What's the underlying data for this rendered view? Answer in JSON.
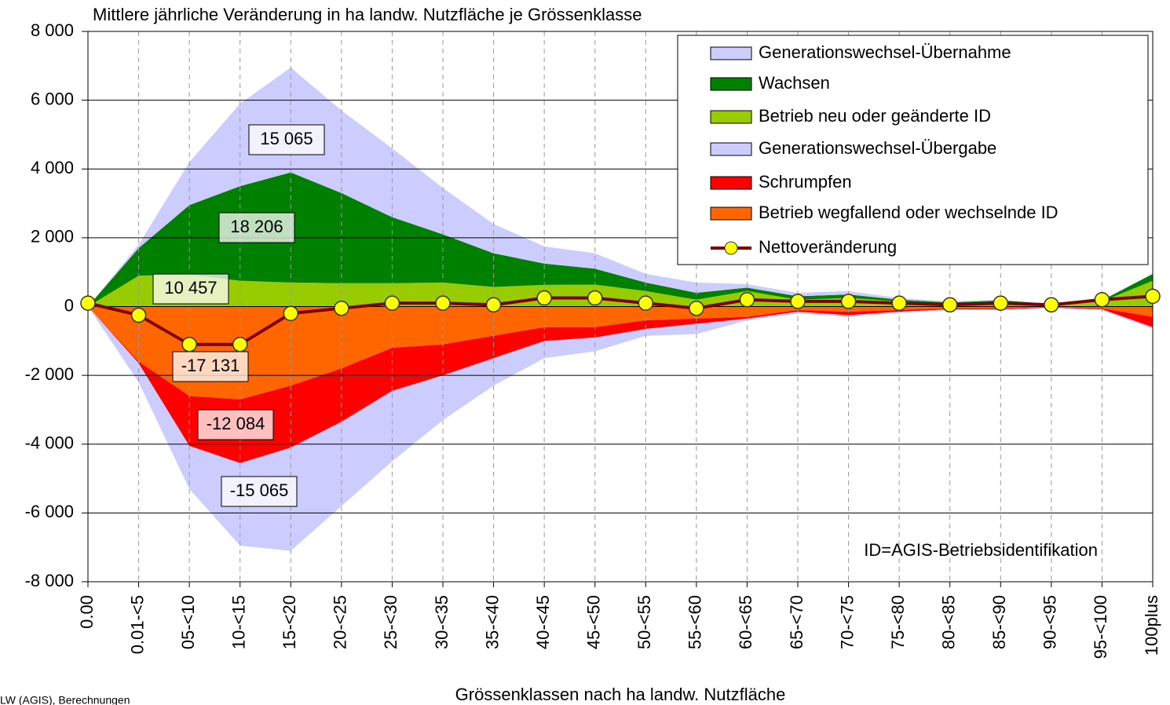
{
  "chart_data": {
    "type": "stacked-area",
    "title": "Mittlere jährliche Veränderung in ha landw. Nutzfläche je Grössenklasse",
    "x_label": "Grössenklassen nach ha landw. Nutzfläche",
    "annotation": "ID=AGIS-Betriebsidentifikation",
    "source": "LW (AGIS), Berechnungen",
    "categories": [
      "0.00",
      "0.01-<5",
      "05-<10",
      "10-<15",
      "15-<20",
      "20-<25",
      "25-<30",
      "30-<35",
      "35-<40",
      "40-<45",
      "45-<50",
      "50-<55",
      "55-<60",
      "60-<65",
      "65-<70",
      "70-<75",
      "75-<80",
      "80-<85",
      "85-<90",
      "90-<95",
      "95-<100",
      "100plus"
    ],
    "ylim": [
      -8000,
      8000
    ],
    "yticks": [
      {
        "value": -8000,
        "label": "-8 000"
      },
      {
        "value": -6000,
        "label": "-6 000"
      },
      {
        "value": -4000,
        "label": "-4 000"
      },
      {
        "value": -2000,
        "label": "-2 000"
      },
      0,
      {
        "value": 2000,
        "label": "2 000"
      },
      {
        "value": 4000,
        "label": "4 000"
      },
      {
        "value": 6000,
        "label": "6 000"
      },
      {
        "value": 8000,
        "label": "8 000"
      }
    ],
    "grid": true,
    "legend": "upper right",
    "series": [
      {
        "name": "Generationswechsel-Übernahme",
        "color": "#ccccff",
        "stack": "positive",
        "order": 2,
        "label": "15 065",
        "values": [
          0,
          100,
          1250,
          2400,
          3050,
          2400,
          2000,
          1350,
          850,
          500,
          450,
          250,
          300,
          100,
          100,
          100,
          50,
          30,
          20,
          0,
          20,
          0
        ]
      },
      {
        "name": "Wachsen",
        "color": "#008000",
        "stack": "positive",
        "order": 1,
        "label": "18 206",
        "values": [
          0,
          800,
          2020,
          2750,
          3200,
          2620,
          1920,
          1400,
          980,
          620,
          460,
          250,
          200,
          100,
          100,
          100,
          50,
          40,
          60,
          30,
          30,
          200
        ]
      },
      {
        "name": "Betrieb neu oder geänderte ID",
        "color": "#99cc00",
        "stack": "positive",
        "order": 0,
        "label": "10 457",
        "values": [
          0,
          900,
          930,
          750,
          700,
          680,
          680,
          700,
          570,
          630,
          640,
          450,
          200,
          450,
          200,
          250,
          150,
          80,
          120,
          50,
          150,
          750
        ]
      },
      {
        "name": "Generationswechsel-Übergabe",
        "color": "#ccccff",
        "stack": "negative",
        "order": 2,
        "label": "-15 065",
        "values": [
          0,
          -550,
          -1250,
          -2400,
          -3000,
          -2450,
          -2050,
          -1300,
          -800,
          -500,
          -400,
          -200,
          -300,
          -50,
          -50,
          -50,
          -30,
          -20,
          -40,
          -10,
          -20,
          -50
        ]
      },
      {
        "name": "Schrumpfen",
        "color": "#ff0000",
        "stack": "negative",
        "order": 1,
        "label": "-12 084",
        "values": [
          0,
          -50,
          -1450,
          -1850,
          -1800,
          -1550,
          -1250,
          -900,
          -650,
          -400,
          -300,
          -250,
          -150,
          -50,
          -50,
          -100,
          -50,
          -30,
          -30,
          -10,
          -30,
          -300
        ]
      },
      {
        "name": "Betrieb wegfallend oder wechselnde ID",
        "color": "#ff6600",
        "stack": "negative",
        "order": 0,
        "label": "-17 131",
        "values": [
          0,
          -1600,
          -2600,
          -2700,
          -2300,
          -1800,
          -1200,
          -1100,
          -850,
          -600,
          -600,
          -400,
          -350,
          -300,
          -100,
          -150,
          -100,
          -50,
          -50,
          -20,
          -50,
          -300
        ]
      },
      {
        "name": "Nettoveränderung",
        "color": "#800000",
        "marker_color": "#ffff00",
        "kind": "line",
        "values": [
          100,
          -250,
          -1100,
          -1100,
          -200,
          -50,
          100,
          100,
          50,
          250,
          250,
          100,
          -50,
          200,
          150,
          150,
          100,
          50,
          100,
          50,
          200,
          300
        ]
      }
    ]
  }
}
